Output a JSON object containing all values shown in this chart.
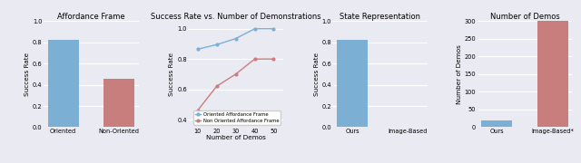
{
  "plot1": {
    "title": "Affordance Frame",
    "categories": [
      "Oriented",
      "Non-Oriented"
    ],
    "values": [
      0.82,
      0.46
    ],
    "colors": [
      "#7BAFD4",
      "#C97E7E"
    ],
    "ylabel": "Success Rate",
    "ylim": [
      0,
      1.0
    ],
    "yticks": [
      0.0,
      0.2,
      0.4,
      0.6,
      0.8,
      1.0
    ]
  },
  "plot2": {
    "title": "Success Rate vs. Number of Demonstrations",
    "xlabel": "Number of Demos",
    "ylabel": "Success Rate",
    "ylim": [
      0.35,
      1.05
    ],
    "yticks": [
      0.4,
      0.6,
      0.8,
      1.0
    ],
    "xlim": [
      5,
      55
    ],
    "xticks": [
      10,
      20,
      30,
      40,
      50
    ],
    "series": [
      {
        "label": "Oriented Affordance Frame",
        "color": "#7BAFD4",
        "x": [
          10,
          20,
          30,
          40,
          50
        ],
        "y": [
          0.865,
          0.895,
          0.935,
          1.0,
          1.0
        ]
      },
      {
        "label": "Non Oriented Affordance Frame",
        "color": "#C97E7E",
        "x": [
          10,
          20,
          30,
          40,
          50
        ],
        "y": [
          0.46,
          0.62,
          0.7,
          0.8,
          0.8
        ]
      }
    ]
  },
  "plot3": {
    "title": "State Representation",
    "categories": [
      "Ours",
      "Image-Based"
    ],
    "values": [
      0.82,
      0.0
    ],
    "colors": [
      "#7BAFD4",
      "#7BAFD4"
    ],
    "ylabel": "Success Rate",
    "ylim": [
      0,
      1.0
    ],
    "yticks": [
      0.0,
      0.2,
      0.4,
      0.6,
      0.8,
      1.0
    ]
  },
  "plot4": {
    "title": "Number of Demos",
    "categories": [
      "Ours",
      "Image-Based*"
    ],
    "values": [
      20,
      300
    ],
    "colors": [
      "#7BAFD4",
      "#C97E7E"
    ],
    "ylabel": "Number of Demos",
    "ylim": [
      0,
      300
    ],
    "yticks": [
      0,
      50,
      100,
      150,
      200,
      250,
      300
    ]
  },
  "fig_facecolor": "#EAEAF2",
  "ax_facecolor": "#EAEAF2",
  "grid_color": "white"
}
